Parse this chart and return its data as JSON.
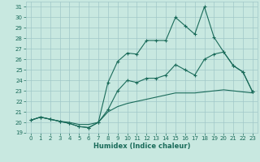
{
  "xlabel": "Humidex (Indice chaleur)",
  "background_color": "#c8e8e0",
  "grid_color": "#a0c8c8",
  "line_color": "#1a6b5a",
  "xlim": [
    -0.5,
    23.5
  ],
  "ylim": [
    19,
    31.5
  ],
  "yticks": [
    19,
    20,
    21,
    22,
    23,
    24,
    25,
    26,
    27,
    28,
    29,
    30,
    31
  ],
  "xticks": [
    0,
    1,
    2,
    3,
    4,
    5,
    6,
    7,
    8,
    9,
    10,
    11,
    12,
    13,
    14,
    15,
    16,
    17,
    18,
    19,
    20,
    21,
    22,
    23
  ],
  "line1_x": [
    0,
    1,
    2,
    3,
    4,
    5,
    6,
    7,
    8,
    9,
    10,
    11,
    12,
    13,
    14,
    15,
    16,
    17,
    18,
    19,
    20,
    21,
    22,
    23
  ],
  "line1_y": [
    20.2,
    20.5,
    20.3,
    20.1,
    19.9,
    19.6,
    19.5,
    20.0,
    23.8,
    25.8,
    26.6,
    26.5,
    27.8,
    27.8,
    27.8,
    30.0,
    29.2,
    28.4,
    31.0,
    28.1,
    26.7,
    25.4,
    24.8,
    22.9
  ],
  "line2_x": [
    0,
    1,
    2,
    3,
    4,
    5,
    6,
    7,
    8,
    9,
    10,
    11,
    12,
    13,
    14,
    15,
    16,
    17,
    18,
    19,
    20,
    21,
    22,
    23
  ],
  "line2_y": [
    20.2,
    20.5,
    20.3,
    20.1,
    19.9,
    19.6,
    19.5,
    20.0,
    21.2,
    23.0,
    24.0,
    23.8,
    24.2,
    24.2,
    24.5,
    25.5,
    25.0,
    24.5,
    26.0,
    26.5,
    26.7,
    25.4,
    24.8,
    22.9
  ],
  "line3_x": [
    0,
    1,
    2,
    3,
    4,
    5,
    6,
    7,
    8,
    9,
    10,
    11,
    12,
    13,
    14,
    15,
    16,
    17,
    18,
    19,
    20,
    21,
    22,
    23
  ],
  "line3_y": [
    20.2,
    20.5,
    20.3,
    20.1,
    20.0,
    19.8,
    19.8,
    20.0,
    21.0,
    21.5,
    21.8,
    22.0,
    22.2,
    22.4,
    22.6,
    22.8,
    22.8,
    22.8,
    22.9,
    23.0,
    23.1,
    23.0,
    22.9,
    22.8
  ]
}
